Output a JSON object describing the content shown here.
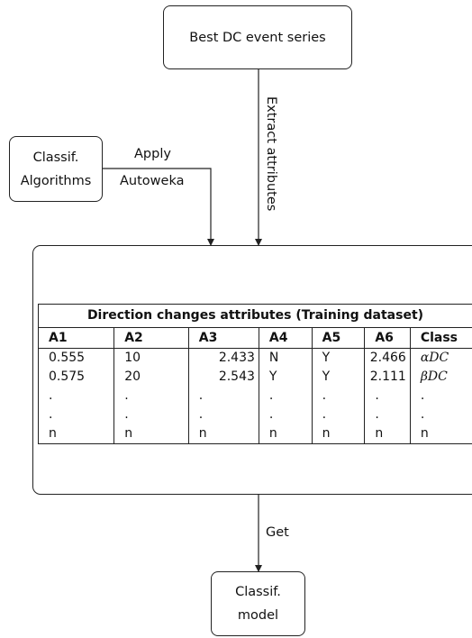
{
  "nodes": {
    "best_dc": "Best DC event series",
    "classif_algorithms": [
      "Classif.",
      "Algorithms"
    ],
    "classif_model": [
      "Classif.",
      "model"
    ]
  },
  "edges": {
    "extract": "Extract attributes",
    "apply": [
      "Apply",
      "Autoweka"
    ],
    "get": "Get"
  },
  "table": {
    "title": "Direction changes attributes (Training dataset)",
    "headers": [
      "A1",
      "A2",
      "A3",
      "A4",
      "A5",
      "A6",
      "Class"
    ],
    "rows": [
      [
        "0.555",
        "10",
        "2.433",
        "N",
        "Y",
        "2.466",
        "αDC"
      ],
      [
        "0.575",
        "20",
        "2.543",
        "Y",
        "Y",
        "2.111",
        "βDC"
      ],
      [
        ".",
        ".",
        ".",
        ".",
        ".",
        ".",
        "."
      ],
      [
        ".",
        ".",
        ".",
        ".",
        ".",
        ".",
        "."
      ],
      [
        "n",
        "n",
        "n",
        "n",
        "n",
        "n",
        "n"
      ]
    ]
  }
}
